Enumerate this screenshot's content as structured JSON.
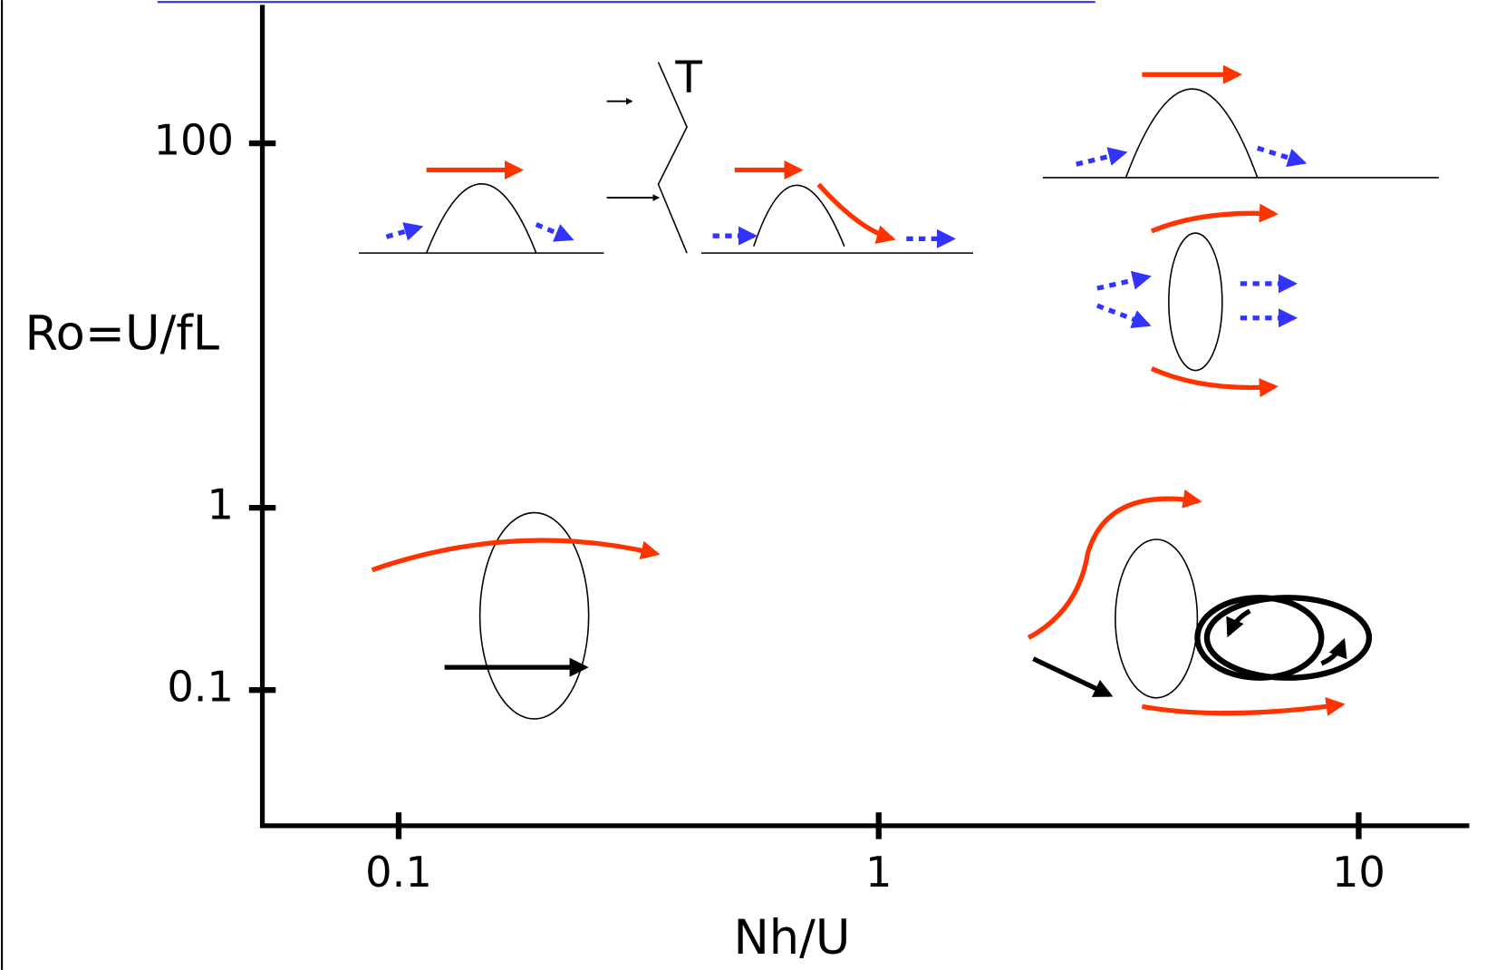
{
  "chart_data": {
    "type": "regime-diagram",
    "x_label": "Nh/U",
    "y_label": "Ro=U/fL",
    "log_x": true,
    "log_y": true,
    "xlim": [
      0.052,
      17
    ],
    "ylim": [
      0.018,
      575
    ],
    "xticks": [
      0.1,
      1,
      10
    ],
    "yticks": [
      100,
      1,
      0.1
    ],
    "annotation": "T"
  }
}
